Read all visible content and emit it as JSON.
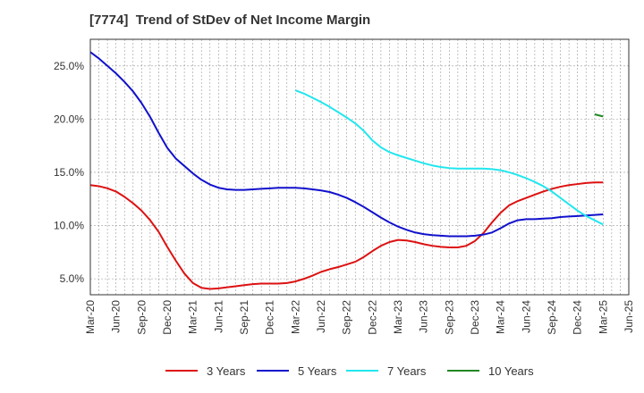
{
  "chart_data": {
    "type": "line",
    "title": "[7774]  Trend of StDev of Net Income Margin",
    "xlabel": "",
    "ylabel": "",
    "x_ticks": [
      "Mar-20",
      "Jun-20",
      "Sep-20",
      "Dec-20",
      "Mar-21",
      "Jun-21",
      "Sep-21",
      "Dec-21",
      "Mar-22",
      "Jun-22",
      "Sep-22",
      "Dec-22",
      "Mar-23",
      "Jun-23",
      "Sep-23",
      "Dec-23",
      "Mar-24",
      "Jun-24",
      "Sep-24",
      "Dec-24",
      "Mar-25",
      "Jun-25"
    ],
    "y_ticks": [
      "5.0%",
      "10.0%",
      "15.0%",
      "20.0%",
      "25.0%"
    ],
    "y_tick_values": [
      5,
      10,
      15,
      20,
      25
    ],
    "ylim": [
      3.5,
      27.5
    ],
    "grid": true,
    "legend_position": "bottom",
    "series": [
      {
        "name": "3 Years",
        "color": "#dd1111",
        "x": [
          "Mar-20",
          "Apr-20",
          "May-20",
          "Jun-20",
          "Jul-20",
          "Aug-20",
          "Sep-20",
          "Oct-20",
          "Nov-20",
          "Dec-20",
          "Jan-21",
          "Feb-21",
          "Mar-21",
          "Apr-21",
          "May-21",
          "Jun-21",
          "Jul-21",
          "Aug-21",
          "Sep-21",
          "Oct-21",
          "Nov-21",
          "Dec-21",
          "Jan-22",
          "Feb-22",
          "Mar-22",
          "Apr-22",
          "May-22",
          "Jun-22",
          "Jul-22",
          "Aug-22",
          "Sep-22",
          "Oct-22",
          "Nov-22",
          "Dec-22",
          "Jan-23",
          "Feb-23",
          "Mar-23",
          "Apr-23",
          "May-23",
          "Jun-23",
          "Jul-23",
          "Aug-23",
          "Sep-23",
          "Oct-23",
          "Nov-23",
          "Dec-23",
          "Jan-24",
          "Feb-24",
          "Mar-24",
          "Apr-24",
          "May-24",
          "Jun-24",
          "Jul-24",
          "Aug-24",
          "Sep-24",
          "Oct-24",
          "Nov-24",
          "Dec-24",
          "Jan-25",
          "Feb-25",
          "Mar-25"
        ],
        "values": [
          13.8,
          13.7,
          13.5,
          13.2,
          12.7,
          12.1,
          11.4,
          10.5,
          9.4,
          8.0,
          6.7,
          5.5,
          4.6,
          4.15,
          4.05,
          4.1,
          4.2,
          4.3,
          4.4,
          4.5,
          4.55,
          4.55,
          4.55,
          4.6,
          4.75,
          5.0,
          5.3,
          5.65,
          5.9,
          6.1,
          6.35,
          6.6,
          7.05,
          7.6,
          8.1,
          8.45,
          8.65,
          8.6,
          8.45,
          8.25,
          8.1,
          8.0,
          7.95,
          7.95,
          8.1,
          8.55,
          9.3,
          10.3,
          11.2,
          11.9,
          12.3,
          12.6,
          12.9,
          13.2,
          13.45,
          13.65,
          13.8,
          13.9,
          14.0,
          14.05,
          14.05
        ]
      },
      {
        "name": "5 Years",
        "color": "#1111cc",
        "x": [
          "Mar-20",
          "Apr-20",
          "May-20",
          "Jun-20",
          "Jul-20",
          "Aug-20",
          "Sep-20",
          "Oct-20",
          "Nov-20",
          "Dec-20",
          "Jan-21",
          "Feb-21",
          "Mar-21",
          "Apr-21",
          "May-21",
          "Jun-21",
          "Jul-21",
          "Aug-21",
          "Sep-21",
          "Oct-21",
          "Nov-21",
          "Dec-21",
          "Jan-22",
          "Feb-22",
          "Mar-22",
          "Apr-22",
          "May-22",
          "Jun-22",
          "Jul-22",
          "Aug-22",
          "Sep-22",
          "Oct-22",
          "Nov-22",
          "Dec-22",
          "Jan-23",
          "Feb-23",
          "Mar-23",
          "Apr-23",
          "May-23",
          "Jun-23",
          "Jul-23",
          "Aug-23",
          "Sep-23",
          "Oct-23",
          "Nov-23",
          "Dec-23",
          "Jan-24",
          "Feb-24",
          "Mar-24",
          "Apr-24",
          "May-24",
          "Jun-24",
          "Jul-24",
          "Aug-24",
          "Sep-24",
          "Oct-24",
          "Nov-24",
          "Dec-24",
          "Jan-25",
          "Feb-25",
          "Mar-25"
        ],
        "values": [
          26.3,
          25.7,
          25.0,
          24.3,
          23.5,
          22.6,
          21.5,
          20.2,
          18.7,
          17.3,
          16.3,
          15.6,
          14.9,
          14.3,
          13.85,
          13.55,
          13.4,
          13.35,
          13.35,
          13.4,
          13.45,
          13.5,
          13.55,
          13.55,
          13.55,
          13.5,
          13.4,
          13.3,
          13.15,
          12.9,
          12.6,
          12.2,
          11.75,
          11.25,
          10.75,
          10.3,
          9.9,
          9.6,
          9.35,
          9.2,
          9.1,
          9.05,
          9.0,
          9.0,
          9.0,
          9.05,
          9.15,
          9.35,
          9.75,
          10.2,
          10.5,
          10.6,
          10.6,
          10.65,
          10.7,
          10.8,
          10.85,
          10.9,
          10.95,
          11.0,
          11.05
        ]
      },
      {
        "name": "7 Years",
        "color": "#22e6ee",
        "x": [
          "Mar-22",
          "Apr-22",
          "May-22",
          "Jun-22",
          "Jul-22",
          "Aug-22",
          "Sep-22",
          "Oct-22",
          "Nov-22",
          "Dec-22",
          "Jan-23",
          "Feb-23",
          "Mar-23",
          "Apr-23",
          "May-23",
          "Jun-23",
          "Jul-23",
          "Aug-23",
          "Sep-23",
          "Oct-23",
          "Nov-23",
          "Dec-23",
          "Jan-24",
          "Feb-24",
          "Mar-24",
          "Apr-24",
          "May-24",
          "Jun-24",
          "Jul-24",
          "Aug-24",
          "Sep-24",
          "Oct-24",
          "Nov-24",
          "Dec-24",
          "Jan-25",
          "Feb-25",
          "Mar-25"
        ],
        "values": [
          22.7,
          22.4,
          22.0,
          21.6,
          21.15,
          20.65,
          20.15,
          19.6,
          18.9,
          18.0,
          17.35,
          16.9,
          16.6,
          16.35,
          16.1,
          15.85,
          15.65,
          15.5,
          15.4,
          15.35,
          15.35,
          15.35,
          15.35,
          15.3,
          15.2,
          15.0,
          14.75,
          14.45,
          14.1,
          13.7,
          13.2,
          12.6,
          12.0,
          11.4,
          10.9,
          10.5,
          10.1
        ]
      },
      {
        "name": "10 Years",
        "color": "#228822",
        "x": [
          "Feb-25",
          "Mar-25"
        ],
        "values": [
          20.45,
          20.25
        ]
      }
    ]
  }
}
